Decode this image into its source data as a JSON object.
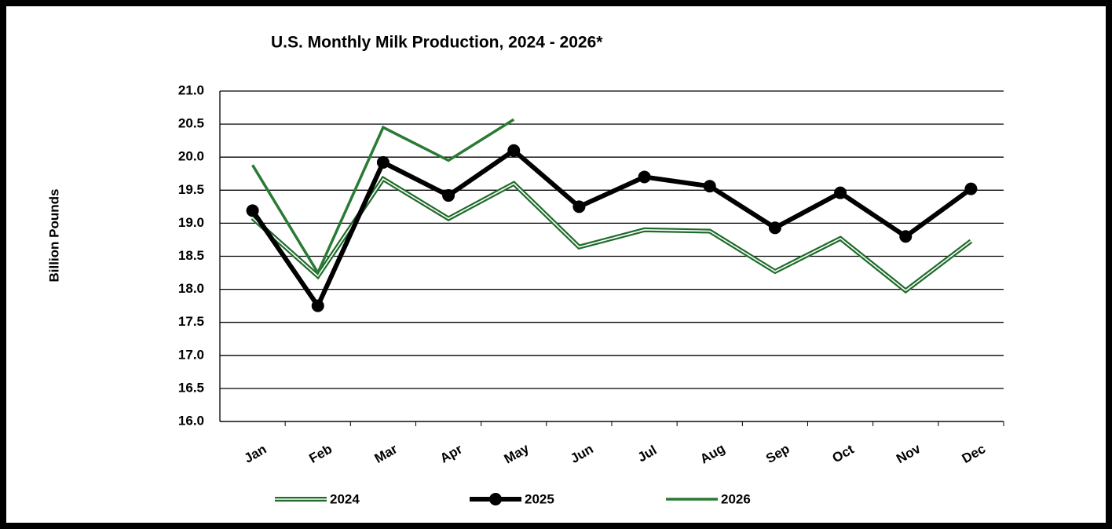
{
  "chart_data": {
    "type": "line",
    "title": "U.S. Monthly Milk Production, 2024 - 2026*",
    "y_label": "Billion Pounds",
    "categories": [
      "Jan",
      "Feb",
      "Mar",
      "Apr",
      "May",
      "Jun",
      "Jul",
      "Aug",
      "Sep",
      "Oct",
      "Nov",
      "Dec"
    ],
    "series": [
      {
        "name": "2024",
        "color": "#1f6b2b",
        "style": "double",
        "markers": false,
        "values": [
          19.08,
          18.2,
          19.67,
          19.07,
          19.6,
          18.64,
          18.9,
          18.88,
          18.27,
          18.77,
          17.98,
          18.73
        ]
      },
      {
        "name": "2025",
        "color": "#000000",
        "style": "solid",
        "markers": true,
        "values": [
          19.19,
          17.75,
          19.92,
          19.42,
          20.1,
          19.25,
          19.7,
          19.56,
          18.93,
          19.46,
          18.8,
          19.52
        ]
      },
      {
        "name": "2026",
        "color": "#2a7a33",
        "style": "solid",
        "markers": false,
        "values": [
          19.88,
          18.25,
          20.45,
          19.95,
          20.57,
          null,
          null,
          null,
          null,
          null,
          null,
          null
        ]
      }
    ],
    "ylim": [
      16,
      21
    ],
    "yticks": [
      {
        "value": 16,
        "label": "16.0"
      },
      16.5,
      {
        "value": 17,
        "label": "17.0"
      },
      17.5,
      {
        "value": 18,
        "label": "18.0"
      },
      18.5,
      {
        "value": 19,
        "label": "19.0"
      },
      19.5,
      {
        "value": 20,
        "label": "20.0"
      },
      20.5,
      {
        "value": 21,
        "label": "21.0"
      }
    ],
    "grid": true,
    "legend": "bottom"
  }
}
